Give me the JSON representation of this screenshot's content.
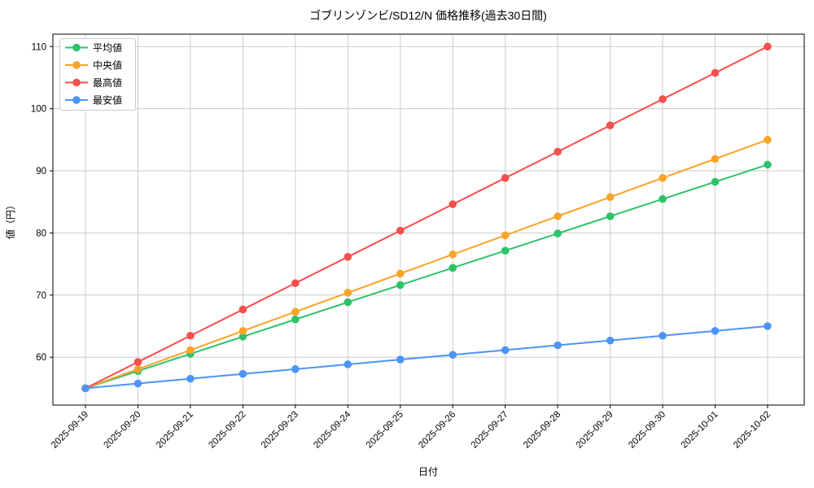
{
  "chart_data": {
    "type": "line",
    "title": "ゴブリンゾンビ/SD12/N 価格推移(過去30日間)",
    "xlabel": "日付",
    "ylabel": "値（円）",
    "x": [
      "2025-09-19",
      "2025-09-20",
      "2025-09-21",
      "2025-09-22",
      "2025-09-23",
      "2025-09-24",
      "2025-09-25",
      "2025-09-26",
      "2025-09-27",
      "2025-09-28",
      "2025-09-29",
      "2025-09-30",
      "2025-10-01",
      "2025-10-02"
    ],
    "series": [
      {
        "name": "平均値",
        "color": "#2dc26a",
        "values": [
          55,
          57.77,
          60.54,
          63.31,
          66.08,
          68.85,
          71.62,
          74.38,
          77.15,
          79.92,
          82.69,
          85.46,
          88.23,
          91
        ]
      },
      {
        "name": "中央値",
        "color": "#f9a428",
        "values": [
          55,
          58.08,
          61.15,
          64.23,
          67.31,
          70.38,
          73.46,
          76.54,
          79.62,
          82.69,
          85.77,
          88.85,
          91.92,
          95
        ]
      },
      {
        "name": "最高値",
        "color": "#f4504c",
        "values": [
          55,
          59.23,
          63.46,
          67.69,
          71.92,
          76.15,
          80.38,
          84.62,
          88.85,
          93.08,
          97.31,
          101.54,
          105.77,
          110
        ]
      },
      {
        "name": "最安値",
        "color": "#4d94f7",
        "values": [
          55,
          55.77,
          56.54,
          57.31,
          58.08,
          58.85,
          59.62,
          60.38,
          61.15,
          61.92,
          62.69,
          63.46,
          64.23,
          65
        ]
      }
    ],
    "ylim": [
      52.3,
      112
    ],
    "yticks": [
      60,
      70,
      80,
      90,
      100,
      110
    ],
    "x_tick_rotation": 45,
    "grid": true,
    "grid_color": "#cccccc",
    "axis_color": "#000000",
    "background_color": "#ffffff",
    "legend_position": "upper left",
    "marker": "circle"
  }
}
